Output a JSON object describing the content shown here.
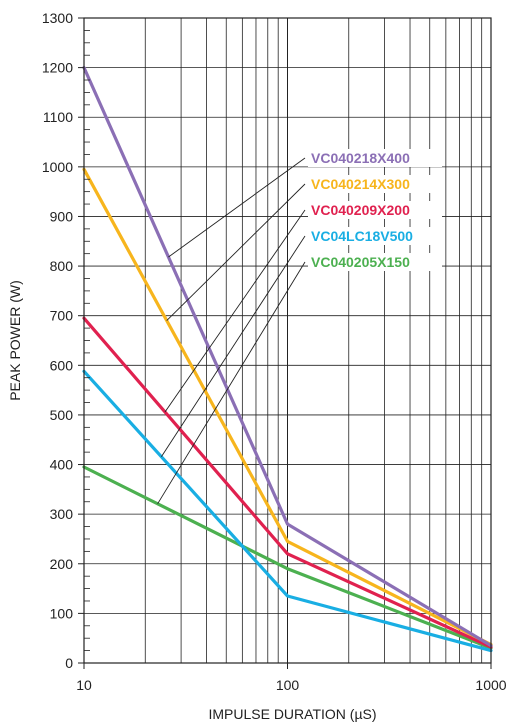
{
  "chart_data": {
    "type": "line",
    "title": "",
    "xlabel": "IMPULSE DURATION (µS)",
    "ylabel": "PEAK POWER (W)",
    "x_scale": "log",
    "xlim": [
      10,
      1000
    ],
    "ylim": [
      0,
      1300
    ],
    "x_ticks": [
      "10",
      "100",
      "1000"
    ],
    "y_ticks": [
      "0",
      "100",
      "200",
      "300",
      "400",
      "500",
      "600",
      "700",
      "800",
      "900",
      "1000",
      "1100",
      "1200",
      "1300"
    ],
    "grid": true,
    "legend_placement": "inline labels with leader lines",
    "series": [
      {
        "name": "VC040218X400",
        "color": "#8b6fb5",
        "x": [
          10,
          100,
          1000
        ],
        "y": [
          1200,
          280,
          35
        ]
      },
      {
        "name": "VC040214X300",
        "color": "#f7b51d",
        "x": [
          10,
          100,
          1000
        ],
        "y": [
          995,
          245,
          37
        ]
      },
      {
        "name": "VC040209X200",
        "color": "#e0214f",
        "x": [
          10,
          100,
          1000
        ],
        "y": [
          695,
          220,
          32
        ]
      },
      {
        "name": "VC04LC18V500",
        "color": "#19aee3",
        "x": [
          10,
          100,
          1000
        ],
        "y": [
          588,
          135,
          25
        ]
      },
      {
        "name": "VC040205X150",
        "color": "#4cb050",
        "x": [
          10,
          100,
          1000
        ],
        "y": [
          395,
          190,
          30
        ]
      }
    ]
  }
}
